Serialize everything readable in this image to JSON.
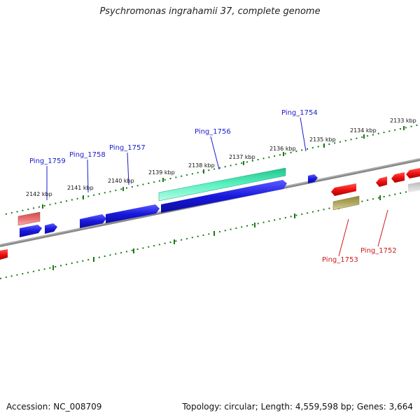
{
  "title": "Psychromonas ingrahamii 37, complete genome",
  "footer": {
    "accession": "Accession: NC_008709",
    "summary": "Topology: circular; Length: 4,559,598 bp; Genes: 3,664"
  },
  "ruler": {
    "ticks": [
      "2142 kbp",
      "2141 kbp",
      "2140 kbp",
      "2139 kbp",
      "2138 kbp",
      "2137 kbp",
      "2136 kbp",
      "2135 kbp",
      "2134 kbp",
      "2133 kbp"
    ]
  },
  "genes": {
    "forward": [
      "Ping_1759",
      "Ping_1758",
      "Ping_1757",
      "Ping_1756",
      "Ping_1754"
    ],
    "reverse": [
      "Ping_1753",
      "Ping_1752"
    ]
  },
  "colors": {
    "blue_gene": "#1818dd",
    "green_gene": "#2ee0a8",
    "red_gene": "#ee1111",
    "pink_gene": "#e87070",
    "olive_gene": "#b0a860",
    "tick_green": "#1a7a1a",
    "backbone": "#777777"
  }
}
